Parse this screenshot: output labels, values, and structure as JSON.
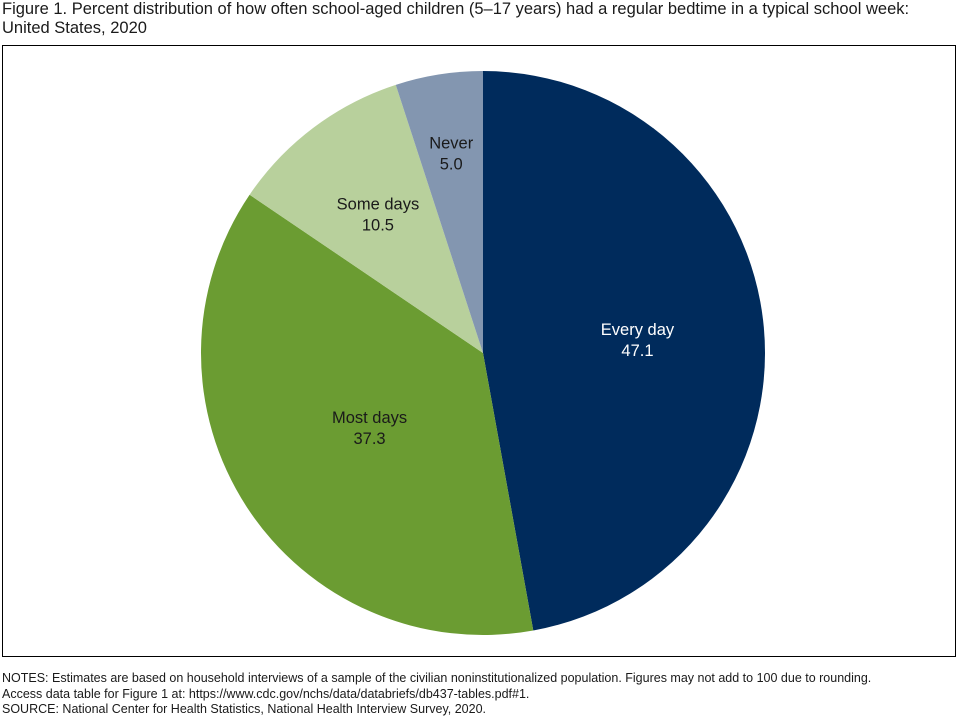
{
  "chart_data": {
    "type": "pie",
    "title": "Figure 1. Percent distribution of how often school-aged children (5–17 years) had a regular bedtime in a typical school week: United States, 2020",
    "start": "12 o'clock, clockwise",
    "slices": [
      {
        "label": "Every day",
        "value": 47.1,
        "value_label": "47.1",
        "color": "#002b5c",
        "text_color": "#ffffff"
      },
      {
        "label": "Most days",
        "value": 37.3,
        "value_label": "37.3",
        "color": "#6b9c32",
        "text_color": "#1a1a1a"
      },
      {
        "label": "Some days",
        "value": 10.5,
        "value_label": "10.5",
        "color": "#b8d09c",
        "text_color": "#1a1a1a"
      },
      {
        "label": "Never",
        "value": 5.0,
        "value_label": "5.0",
        "color": "#8396b0",
        "text_color": "#1a1a1a"
      }
    ]
  },
  "notes": [
    "NOTES: Estimates are based on household interviews of a sample of the civilian noninstitutionalized population. Figures may not add to 100 due to rounding.",
    "Access data table for Figure 1 at: https://www.cdc.gov/nchs/data/databriefs/db437-tables.pdf#1.",
    "SOURCE: National Center for Health Statistics, National Health Interview Survey, 2020."
  ]
}
